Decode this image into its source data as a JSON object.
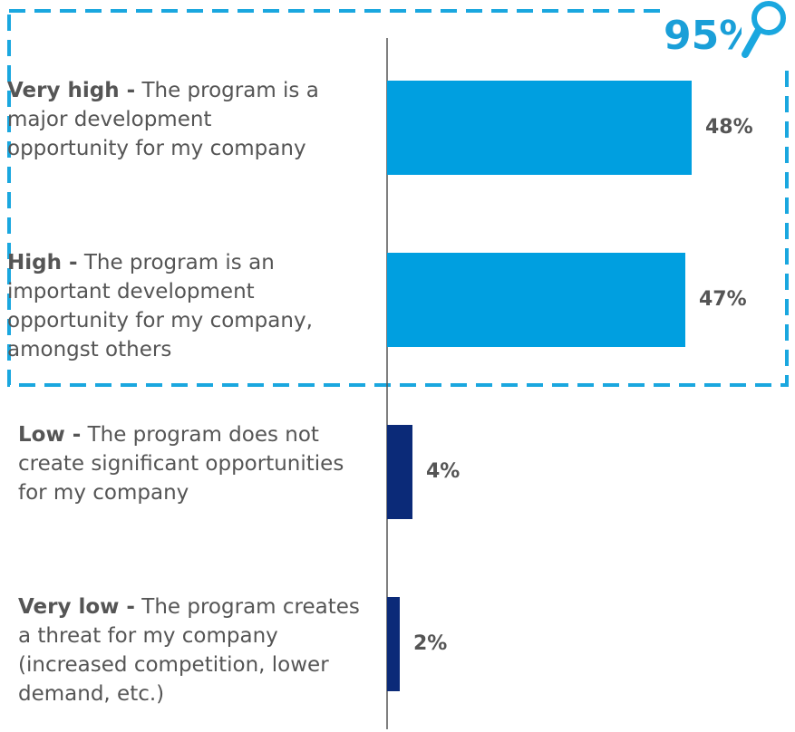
{
  "chart_data": {
    "type": "bar",
    "orientation": "horizontal",
    "categories": [
      "Very high -",
      "High -",
      "Low -",
      "Very low -"
    ],
    "descriptions": [
      "The program is a major development opportunity for my company",
      "The program is an important development opportunity for my company, amongst others",
      "The program does not create significant opportunities for my company",
      "The program creates a threat for my company (increased competition, lower demand, etc.)"
    ],
    "values": [
      48,
      47,
      4,
      2
    ],
    "value_labels": [
      "48%",
      "47%",
      "4%",
      "2%"
    ],
    "colors": [
      "#009fe0",
      "#009fe0",
      "#0b2a78",
      "#0b2a78"
    ],
    "xlim": [
      0,
      100
    ],
    "annotation": "95%"
  }
}
